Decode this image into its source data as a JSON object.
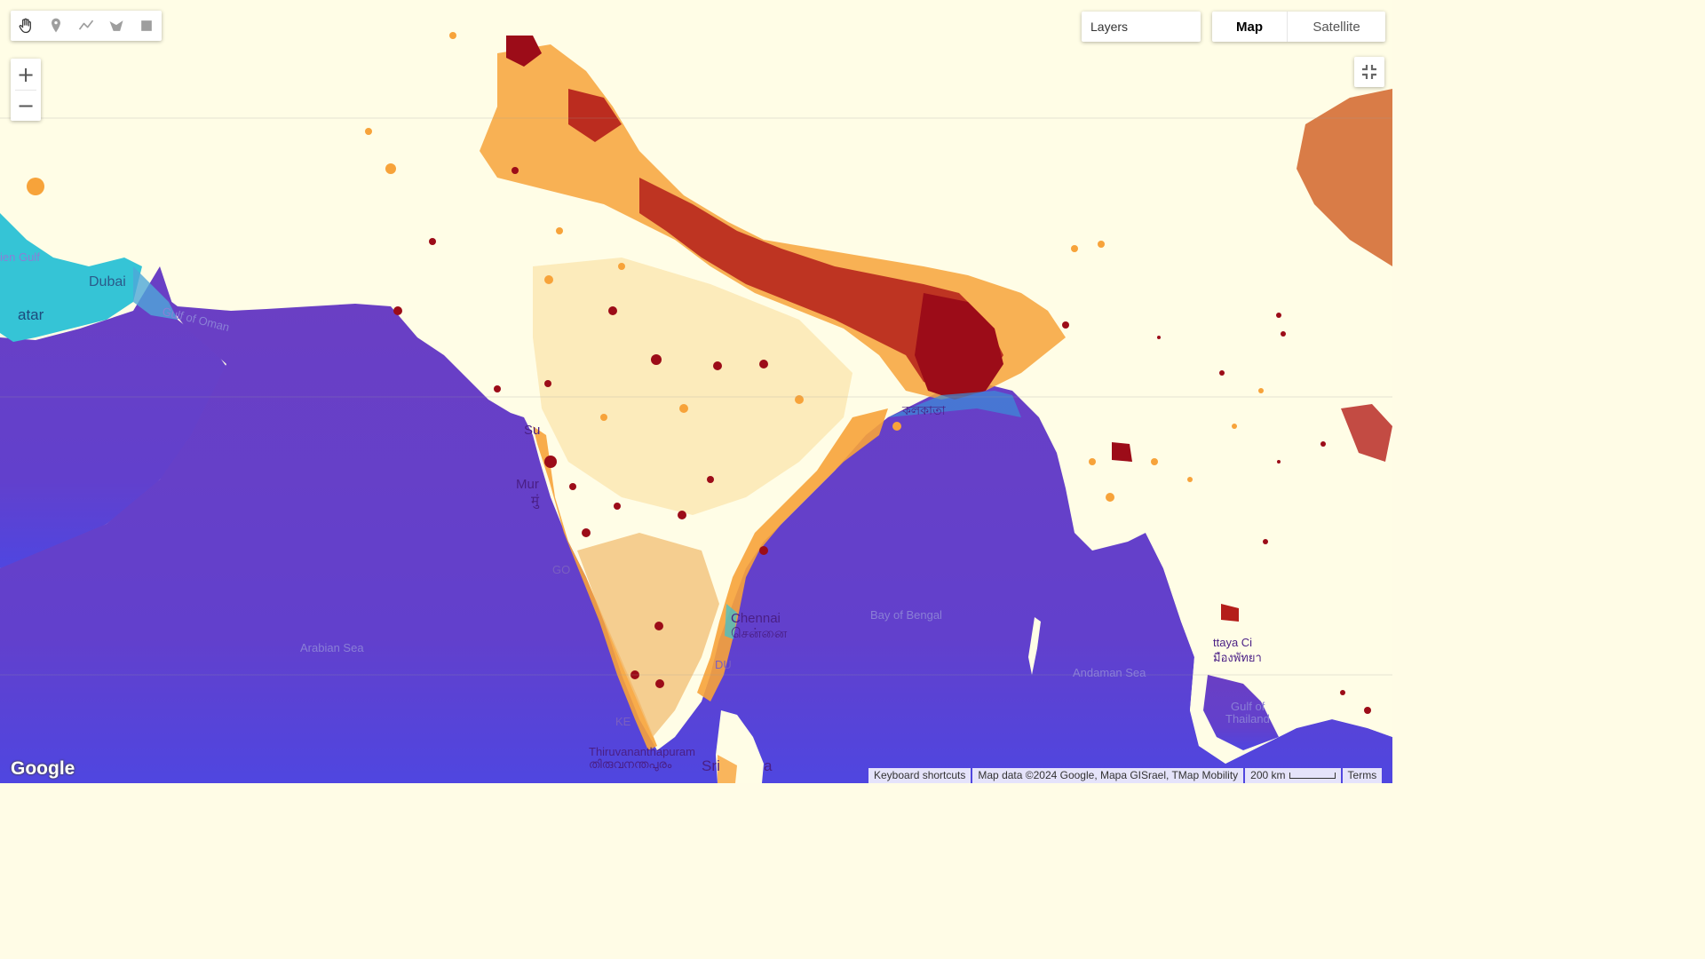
{
  "toolbar": {
    "tools": [
      {
        "name": "hand-icon",
        "active": true
      },
      {
        "name": "marker-icon"
      },
      {
        "name": "line-icon"
      },
      {
        "name": "polygon-icon"
      },
      {
        "name": "rectangle-icon"
      }
    ]
  },
  "zoom": {
    "in_label": "+",
    "out_label": "−"
  },
  "layers": {
    "label": "Layers"
  },
  "map_type": {
    "options": [
      "Map",
      "Satellite"
    ],
    "selected": "Map"
  },
  "labels": {
    "dubai": "Dubai",
    "qatar": "atar",
    "gulf_oman": "Gulf of Oman",
    "persian_gulf": "ien Gulf",
    "arabian_sea": "Arabian Sea",
    "bay_bengal": "Bay of Bengal",
    "andaman_sea": "Andaman Sea",
    "gulf_thailand_1": "Gulf of",
    "gulf_thailand_2": "Thailand",
    "chennai_en": "Chennai",
    "chennai_ta": "சென்னை",
    "thiruvananthapuram_en": "Thiruvananthapuram",
    "thiruvananthapuram_ml": "തിരുവനന്തപുരം",
    "mumbai_en": "Mur",
    "mumbai_mr": "मुं",
    "surat": "Su",
    "pattaya_en": "ttaya Ci",
    "pattaya_th": "มืองพัทยา",
    "kolkata": "কলকাতা",
    "srilanka": "Sri",
    "srilanka2": "a",
    "goa": "GO",
    "kerala": "KE",
    "pondy": "DU"
  },
  "footer": {
    "logo": "Google",
    "keyboard": "Keyboard shortcuts",
    "mapdata": "Map data ©2024 Google, Mapa GISrael, TMap Mobility",
    "scale": "200 km",
    "terms": "Terms"
  },
  "colors": {
    "ocean": "#6a3fc4",
    "land_low": "#fffde6",
    "density_mid": "#f7a33a",
    "density_high": "#a5101a"
  }
}
